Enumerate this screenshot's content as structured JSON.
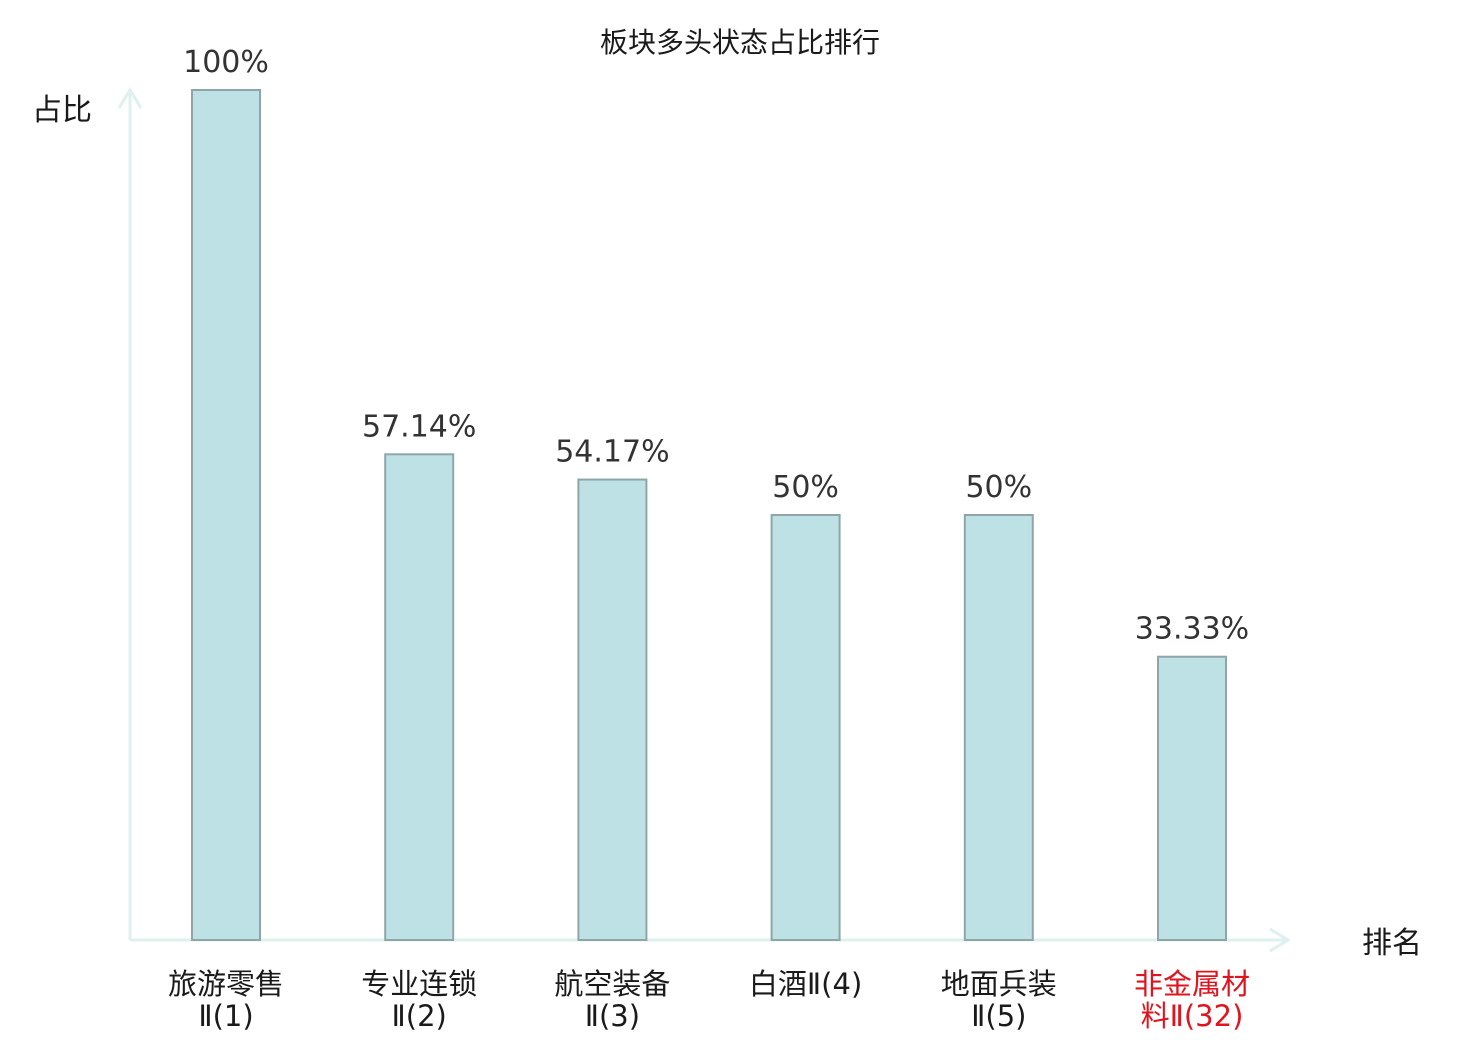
{
  "chart_data": {
    "type": "bar",
    "title": "板块多头状态占比排行",
    "ylabel": "占比",
    "xlabel": "排名",
    "ylim": [
      0,
      100
    ],
    "grid": false,
    "categories": [
      {
        "line1": "旅游零售",
        "line2": "Ⅱ(1)",
        "highlight": false
      },
      {
        "line1": "专业连锁",
        "line2": "Ⅱ(2)",
        "highlight": false
      },
      {
        "line1": "航空装备",
        "line2": "Ⅱ(3)",
        "highlight": false
      },
      {
        "line1": "白酒Ⅱ(4)",
        "line2": "",
        "highlight": false
      },
      {
        "line1": "地面兵装",
        "line2": "Ⅱ(5)",
        "highlight": false
      },
      {
        "line1": "非金属材",
        "line2": "料Ⅱ(32)",
        "highlight": true
      }
    ],
    "values": [
      100,
      57.14,
      54.17,
      50,
      50,
      33.33
    ],
    "value_labels": [
      "100%",
      "57.14%",
      "54.17%",
      "50%",
      "50%",
      "33.33%"
    ],
    "colors": {
      "bar_fill": "#bde1e4",
      "bar_stroke": "#8fa6a8",
      "axis": "#dff1ee",
      "label_default": "#1a1a1a",
      "label_highlight": "#e0141e"
    }
  }
}
